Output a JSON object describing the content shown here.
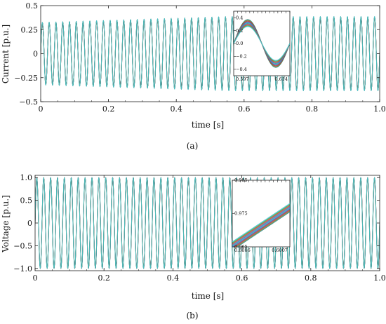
{
  "chart_data": [
    {
      "type": "line",
      "panel_label": "(a)",
      "xlabel": "time [s]",
      "ylabel": "Current [p.u.]",
      "xlim": [
        0,
        1.0
      ],
      "ylim": [
        -0.5,
        0.5
      ],
      "x_ticks": [
        "0",
        "0.2",
        "0.4",
        "0.6",
        "0.8",
        "1.0"
      ],
      "y_ticks": [
        "0.5",
        "0.25",
        "0",
        "−0.25",
        "−0.5"
      ],
      "signal": {
        "waveform": "sine",
        "frequency_hz": 50,
        "amplitude_start": 0.32,
        "amplitude_end": 0.38
      },
      "series_colors": [
        "#2e8b8b",
        "#7a7f2a",
        "#c0392b",
        "#5b4ea0",
        "#3b8fd0",
        "#2aa198",
        "#8e44ad",
        "#d35400",
        "#27ae60",
        "#4fc3d8"
      ],
      "inset": {
        "xlim": [
          0.597,
          0.614
        ],
        "ylim": [
          -0.5,
          0.5
        ],
        "x_ticks": [
          "0.597",
          "0.614"
        ],
        "y_ticks": [
          "0.4",
          "0.2",
          "0.0",
          "−0.2",
          "−0.4"
        ]
      }
    },
    {
      "type": "line",
      "panel_label": "(b)",
      "xlabel": "time [s]",
      "ylabel": "Voltage [p.u.]",
      "xlim": [
        0,
        1.0
      ],
      "ylim": [
        -1.05,
        1.05
      ],
      "x_ticks": [
        "0",
        "0.2",
        "0.4",
        "0.6",
        "0.8",
        "1.0"
      ],
      "y_ticks": [
        "1.0",
        "0.5",
        "0",
        "−0.5",
        "−1.0"
      ],
      "signal": {
        "waveform": "sine",
        "frequency_hz": 50,
        "amplitude": 1.0
      },
      "series_colors": [
        "#2e8b8b",
        "#7a7f2a",
        "#c0392b",
        "#5b4ea0",
        "#3b8fd0",
        "#2aa198",
        "#8e44ad",
        "#d35400",
        "#27ae60",
        "#4fc3d8"
      ],
      "inset": {
        "xlim": [
          0.6006,
          0.6007
        ],
        "ylim": [
          0.965,
          0.985
        ],
        "x_ticks": [
          "0.6006",
          "0.6007"
        ],
        "y_ticks": [
          "0.985",
          "0.975",
          "0.965"
        ]
      }
    }
  ]
}
